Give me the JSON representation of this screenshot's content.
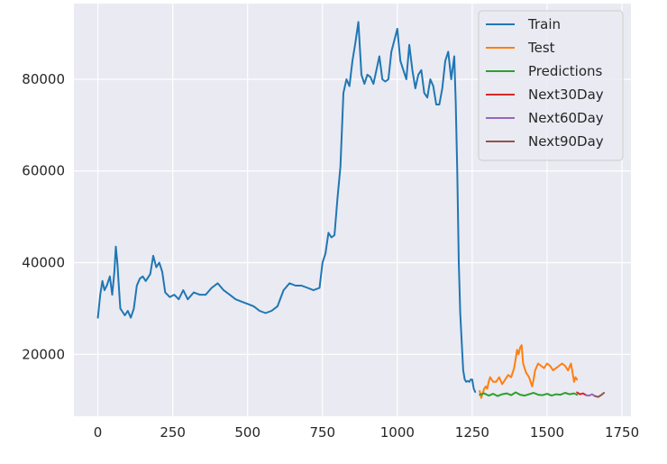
{
  "chart_data": {
    "type": "line",
    "title": "",
    "xlabel": "",
    "ylabel": "",
    "xlim": [
      -80,
      1780
    ],
    "ylim": [
      6500,
      96500
    ],
    "x_ticks": [
      0,
      250,
      500,
      750,
      1000,
      1250,
      1500,
      1750
    ],
    "x_tick_labels": [
      "0",
      "250",
      "500",
      "750",
      "1000",
      "1250",
      "1500",
      "1750"
    ],
    "y_ticks": [
      20000,
      40000,
      60000,
      80000
    ],
    "y_tick_labels": [
      "20000",
      "40000",
      "60000",
      "80000"
    ],
    "grid": true,
    "background": "#eaeaf2",
    "legend_position": "top-right",
    "series": [
      {
        "name": "Train",
        "color": "#1f77b4",
        "x": [
          0,
          8,
          15,
          22,
          30,
          40,
          48,
          55,
          60,
          65,
          70,
          75,
          80,
          90,
          100,
          110,
          120,
          130,
          140,
          150,
          160,
          175,
          185,
          195,
          205,
          215,
          225,
          240,
          255,
          270,
          285,
          300,
          320,
          340,
          360,
          380,
          400,
          420,
          440,
          460,
          480,
          500,
          520,
          540,
          560,
          580,
          600,
          620,
          640,
          660,
          680,
          700,
          720,
          740,
          750,
          760,
          770,
          780,
          790,
          800,
          810,
          820,
          830,
          840,
          850,
          860,
          870,
          880,
          890,
          900,
          910,
          920,
          930,
          940,
          950,
          960,
          970,
          980,
          990,
          1000,
          1010,
          1020,
          1030,
          1040,
          1050,
          1060,
          1070,
          1080,
          1090,
          1100,
          1110,
          1120,
          1130,
          1140,
          1150,
          1160,
          1170,
          1180,
          1190,
          1195,
          1200,
          1205,
          1210,
          1215,
          1220,
          1225,
          1230,
          1235,
          1240,
          1245,
          1250,
          1255,
          1260
        ],
        "y": [
          28000,
          33000,
          36000,
          34000,
          35000,
          37000,
          33000,
          38000,
          43500,
          40000,
          35000,
          30000,
          29500,
          28500,
          29500,
          28000,
          30000,
          35000,
          36500,
          37000,
          36000,
          37500,
          41500,
          39000,
          40000,
          38000,
          33500,
          32500,
          33000,
          32000,
          34000,
          32000,
          33500,
          33000,
          33000,
          34500,
          35500,
          34000,
          33000,
          32000,
          31500,
          31000,
          30500,
          29500,
          29000,
          29500,
          30500,
          34000,
          35500,
          35000,
          35000,
          34500,
          34000,
          34500,
          40000,
          42000,
          46500,
          45500,
          46000,
          54000,
          61000,
          77000,
          80000,
          78500,
          84000,
          88000,
          92500,
          81000,
          79000,
          81000,
          80500,
          79000,
          82000,
          85000,
          80000,
          79500,
          80000,
          86000,
          88500,
          91000,
          84000,
          82000,
          80000,
          87500,
          82000,
          78000,
          81000,
          82000,
          77000,
          76000,
          80000,
          78500,
          74500,
          74500,
          78000,
          84000,
          86000,
          80000,
          85000,
          75000,
          60000,
          40000,
          29000,
          22500,
          16500,
          14500,
          14000,
          14200,
          14000,
          14500,
          14500,
          12500,
          11800
        ]
      },
      {
        "name": "Test",
        "color": "#ff7f0e",
        "x": [
          1275,
          1280,
          1285,
          1290,
          1295,
          1300,
          1305,
          1310,
          1315,
          1320,
          1330,
          1340,
          1350,
          1360,
          1370,
          1380,
          1390,
          1395,
          1400,
          1405,
          1410,
          1415,
          1420,
          1425,
          1430,
          1435,
          1440,
          1445,
          1450,
          1455,
          1460,
          1470,
          1480,
          1490,
          1500,
          1510,
          1520,
          1530,
          1540,
          1550,
          1560,
          1570,
          1580,
          1590,
          1595,
          1600
        ],
        "y": [
          12000,
          10500,
          11500,
          12500,
          13000,
          12500,
          14000,
          15000,
          14500,
          14000,
          14000,
          15000,
          13500,
          14500,
          15500,
          15000,
          17000,
          19000,
          21000,
          20000,
          21500,
          22000,
          18000,
          17000,
          16000,
          15500,
          15000,
          14000,
          13000,
          14500,
          16500,
          18000,
          17500,
          17000,
          18000,
          17500,
          16500,
          17000,
          17500,
          18000,
          17500,
          16500,
          18000,
          14000,
          15000,
          14500
        ]
      },
      {
        "name": "Predictions",
        "color": "#2ca02c",
        "x": [
          1275,
          1290,
          1305,
          1320,
          1335,
          1350,
          1365,
          1380,
          1395,
          1410,
          1425,
          1440,
          1455,
          1470,
          1485,
          1500,
          1515,
          1530,
          1545,
          1560,
          1575,
          1590,
          1600
        ],
        "y": [
          11200,
          11500,
          11000,
          11400,
          10900,
          11300,
          11500,
          11100,
          11700,
          11200,
          11000,
          11300,
          11600,
          11200,
          11100,
          11400,
          11000,
          11300,
          11200,
          11600,
          11300,
          11500,
          11200
        ]
      },
      {
        "name": "Next30Day",
        "color": "#d62728",
        "x": [
          1600,
          1610,
          1620,
          1630
        ],
        "y": [
          11700,
          11300,
          11500,
          11100
        ]
      },
      {
        "name": "Next60Day",
        "color": "#9467bd",
        "x": [
          1630,
          1640,
          1650,
          1660
        ],
        "y": [
          11100,
          11000,
          11300,
          10900
        ]
      },
      {
        "name": "Next90Day",
        "color": "#8c564b",
        "x": [
          1660,
          1670,
          1680,
          1690
        ],
        "y": [
          10900,
          10700,
          11100,
          11600
        ]
      }
    ]
  }
}
